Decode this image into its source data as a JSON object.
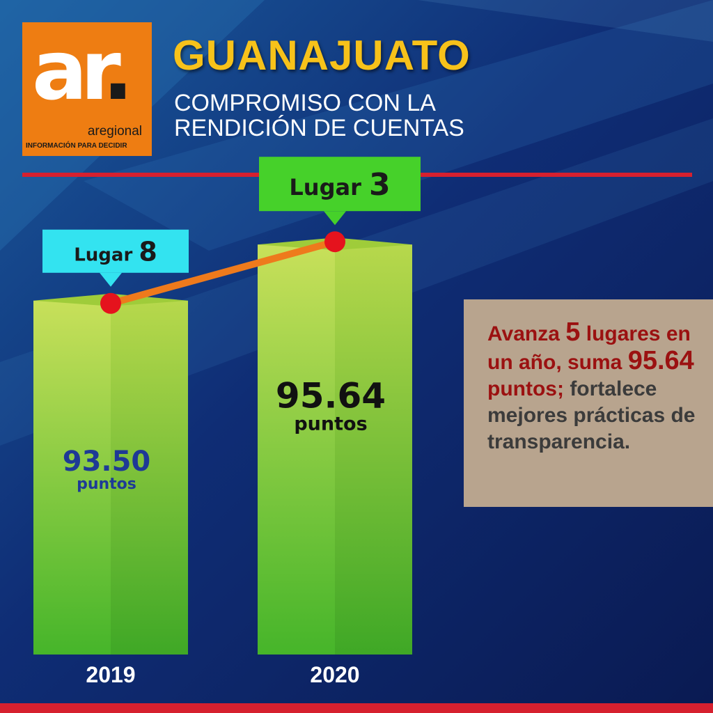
{
  "logo": {
    "mark": "ar",
    "dot": ".",
    "brand": "aregional",
    "tagline": "INFORMACIÓN PARA DECIDIR"
  },
  "header": {
    "title": "GUANAJUATO",
    "subtitle_line1": "COMPROMISO CON LA",
    "subtitle_line2": "RENDICIÓN DE CUENTAS"
  },
  "callout": {
    "p1": "Avanza",
    "n1": "5",
    "p2": "lugares en un año, suma",
    "n2": "95.64",
    "p3": "puntos;",
    "p4": "fortalece mejores prácticas de transparencia."
  },
  "colors": {
    "accent_red": "#d6202f",
    "title_yellow": "#f7c21a",
    "bar_green": "#a6d13f",
    "label_2019": "#33e3f0",
    "label_2020": "#46d12a",
    "line_orange": "#ee7a1c",
    "point_red": "#e5131d"
  },
  "chart_data": {
    "type": "bar",
    "categories": [
      "2019",
      "2020"
    ],
    "values": [
      93.5,
      95.64
    ],
    "value_labels": [
      "93.50",
      "95.64"
    ],
    "unit_label": "puntos",
    "rank_prefix": "Lugar",
    "ranks": [
      8,
      3
    ],
    "value_label_colors": [
      "#1e3a96",
      "#111111"
    ],
    "rank_box_colors": [
      "#33e3f0",
      "#46d12a"
    ],
    "ylim": [
      80,
      97
    ],
    "connector_line": true
  }
}
